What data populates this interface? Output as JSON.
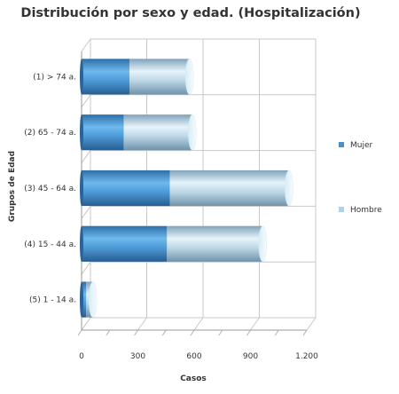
{
  "chart_data": {
    "type": "bar",
    "orientation": "horizontal",
    "stacked": true,
    "title": "Distribución por sexo y edad. (Hospitalización)",
    "xlabel": "Casos",
    "ylabel": "Grupos de Edad",
    "xlim": [
      0,
      1200
    ],
    "xticks": [
      0,
      300,
      600,
      900,
      1200
    ],
    "xtick_labels": [
      "0",
      "300",
      "600",
      "900",
      "1.200"
    ],
    "grid": true,
    "legend_position": "right",
    "categories": [
      "(1) > 74 a.",
      "(2) 65 - 74 a.",
      "(3) 45 - 64 a.",
      "(4) 15 - 44 a.",
      "(5) 1 - 14 a."
    ],
    "series": [
      {
        "name": "Mujer",
        "color": "#4a90cc",
        "values": [
          255,
          225,
          470,
          455,
          25
        ]
      },
      {
        "name": "Hombre",
        "color": "#a8d4f0",
        "values": [
          320,
          365,
          635,
          510,
          35
        ]
      }
    ]
  }
}
